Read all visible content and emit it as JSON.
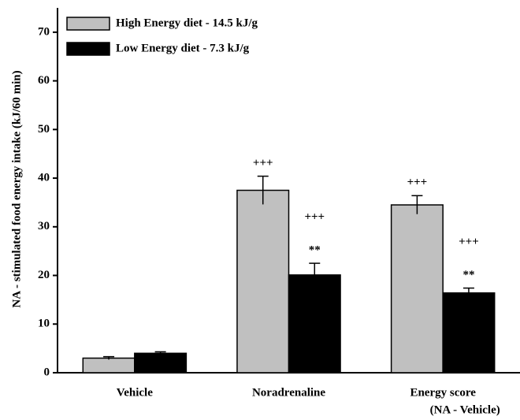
{
  "chart_data": {
    "type": "bar",
    "y_label": "NA - stimulated food energy intake (kJ/60 min)",
    "categories": [
      [
        "Vehicle"
      ],
      [
        "Noradrenaline"
      ],
      [
        "Energy score",
        "(NA - Vehicle)"
      ]
    ],
    "series": [
      {
        "name": "High Energy diet - 14.5 kJ/g",
        "color": "#c0c0c0",
        "values": [
          3,
          37.5,
          34.5
        ],
        "errors": [
          0.3,
          2.9,
          1.9
        ],
        "annotations": [
          [],
          [
            "+++"
          ],
          [
            "+++"
          ]
        ]
      },
      {
        "name": "Low Energy diet - 7.3 kJ/g",
        "color": "#000000",
        "values": [
          4,
          20.1,
          16.4
        ],
        "errors": [
          0.3,
          2.4,
          1.0
        ],
        "annotations": [
          [],
          [
            "+++",
            "**"
          ],
          [
            "+++",
            "**"
          ]
        ]
      }
    ],
    "ylim": [
      0,
      75
    ],
    "yticks": [
      0,
      10,
      20,
      30,
      40,
      50,
      60,
      70
    ],
    "legend": "top-left"
  }
}
